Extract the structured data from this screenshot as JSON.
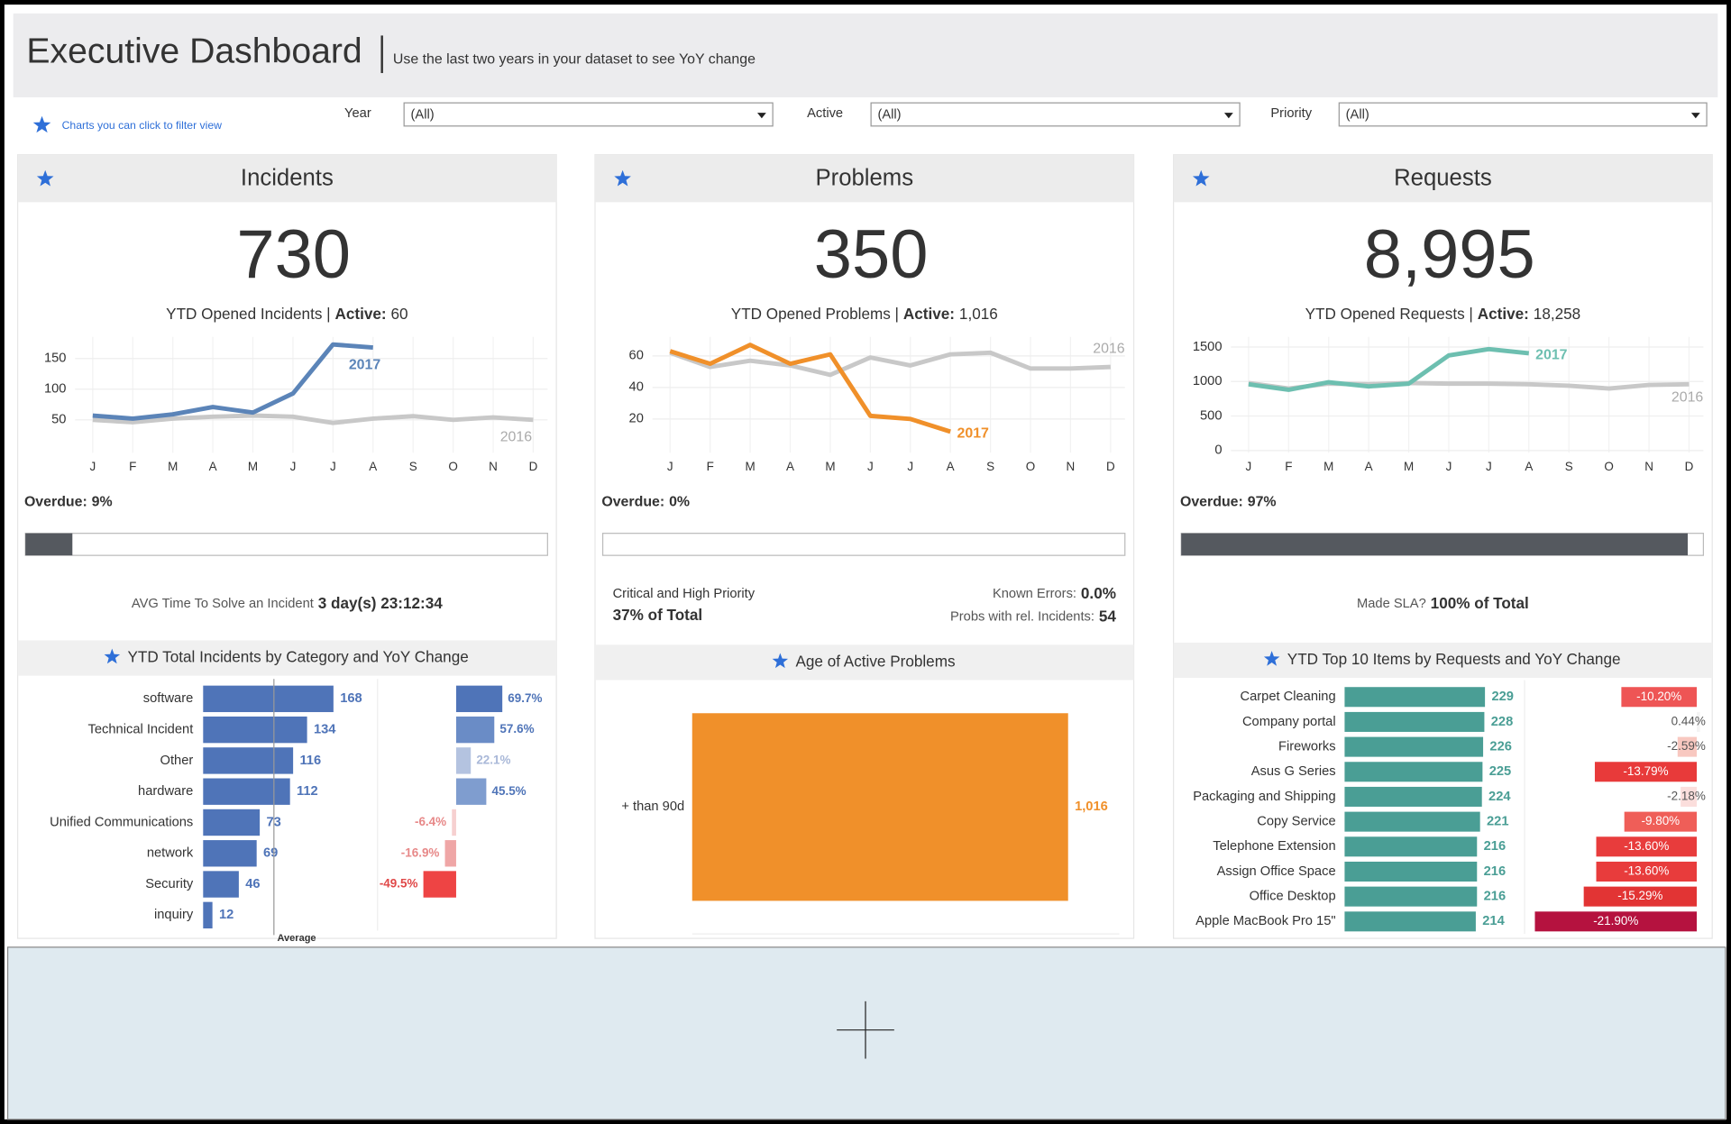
{
  "header": {
    "title": "Executive Dashboard",
    "subtitle": "Use the last two years in your dataset to see YoY change"
  },
  "legend_note": "Charts you can click to filter view",
  "filters": [
    {
      "label": "Year",
      "value": "(All)"
    },
    {
      "label": "Active",
      "value": "(All)"
    },
    {
      "label": "Priority",
      "value": "(All)"
    }
  ],
  "panels": [
    {
      "title": "Incidents",
      "kpi": "730",
      "caption": "YTD Opened Incidents |",
      "active_label": "Active:",
      "active_value": "60",
      "trend": {
        "type": "line",
        "categories": [
          "J",
          "F",
          "M",
          "A",
          "M",
          "J",
          "J",
          "A",
          "S",
          "O",
          "N",
          "D"
        ],
        "series": [
          {
            "name": "2017",
            "color": "#5b84b8",
            "values": [
              57,
              52,
              59,
              71,
              62,
              93,
              173,
              168,
              null,
              null,
              null,
              null
            ]
          },
          {
            "name": "2016",
            "color": "#c8c8c8",
            "values": [
              50,
              46,
              52,
              55,
              57,
              55,
              45,
              52,
              56,
              50,
              54,
              50
            ]
          }
        ],
        "ylim": [
          0,
          180
        ],
        "yticks": [
          50,
          100,
          150
        ]
      },
      "overdue": {
        "label": "Overdue:",
        "value": 9,
        "value_label": "9%",
        "color": "#55595f"
      },
      "stats": [
        {
          "label": "AVG Time To Solve an Incident",
          "value": "3 day(s) 23:12:34"
        }
      ],
      "breakdown": {
        "type": "bar",
        "title": "YTD Total Incidents by Category and YoY Change",
        "categories": [
          "software",
          "Technical Incident",
          "Other",
          "hardware",
          "Unified Communications",
          "network",
          "Security",
          "inquiry"
        ],
        "values": [
          168,
          134,
          116,
          112,
          73,
          69,
          46,
          12
        ],
        "color": "#4f74b8",
        "xlim": [
          0,
          222
        ],
        "average": {
          "label": "Average",
          "value": 91.25
        },
        "change": {
          "values": [
            69.7,
            57.6,
            22.1,
            45.5,
            -6.4,
            -16.9,
            -49.5,
            null
          ],
          "value_labels": [
            "69.7%",
            "57.6%",
            "22.1%",
            "45.5%",
            "-6.4%",
            "-16.9%",
            "-49.5%",
            null
          ],
          "colors": [
            "#4f74b8",
            "#6a8cc6",
            "#b4c3e0",
            "#7f9dcf",
            "#f6d0d0",
            "#efa6a6",
            "#ee4444",
            null
          ],
          "xlim": [
            -112,
            138
          ]
        }
      }
    },
    {
      "title": "Problems",
      "kpi": "350",
      "caption": "YTD Opened Problems |",
      "active_label": "Active:",
      "active_value": "1,016",
      "trend": {
        "type": "line",
        "categories": [
          "J",
          "F",
          "M",
          "A",
          "M",
          "J",
          "J",
          "A",
          "S",
          "O",
          "N",
          "D"
        ],
        "series": [
          {
            "name": "2017",
            "color": "#f0902a",
            "values": [
              63,
              55,
              67,
              55,
              61,
              22,
              20,
              12,
              null,
              null,
              null,
              null
            ]
          },
          {
            "name": "2016",
            "color": "#c8c8c8",
            "values": [
              62,
              53,
              57,
              54,
              48,
              59,
              54,
              61,
              62,
              52,
              52,
              53
            ]
          }
        ],
        "ylim": [
          0,
          70
        ],
        "yticks": [
          20,
          40,
          60
        ]
      },
      "overdue": {
        "label": "Overdue:",
        "value": 0,
        "value_label": "0%",
        "color": "#55595f"
      },
      "stats": [
        {
          "label": "Critical and High Priority",
          "value": "37% of Total"
        },
        {
          "label": "Known Errors:",
          "value": "0.0%"
        },
        {
          "label": "Probs with rel. Incidents:",
          "value": "54"
        }
      ],
      "breakdown": {
        "type": "bar",
        "title": "Age of Active Problems",
        "categories": [
          "+ than 90d"
        ],
        "values": [
          1016
        ],
        "value_labels": [
          "1,016"
        ],
        "color": "#f0902a",
        "xlim": [
          0,
          1095
        ]
      }
    },
    {
      "title": "Requests",
      "kpi": "8,995",
      "caption": "YTD Opened Requests |",
      "active_label": "Active:",
      "active_value": "18,258",
      "trend": {
        "type": "line",
        "categories": [
          "J",
          "F",
          "M",
          "A",
          "M",
          "J",
          "J",
          "A",
          "S",
          "O",
          "N",
          "D"
        ],
        "series": [
          {
            "name": "2017",
            "color": "#6dbfb0",
            "values": [
              960,
              880,
              990,
              930,
              970,
              1380,
              1470,
              1410,
              null,
              null,
              null,
              null
            ]
          },
          {
            "name": "2016",
            "color": "#c8c8c8",
            "values": [
              980,
              900,
              970,
              960,
              980,
              970,
              970,
              960,
              940,
              900,
              950,
              960
            ]
          }
        ],
        "ylim": [
          0,
          1600
        ],
        "yticks": [
          0,
          500,
          1000,
          1500
        ]
      },
      "overdue": {
        "label": "Overdue:",
        "value": 97,
        "value_label": "97%",
        "color": "#55595f"
      },
      "stats": [
        {
          "label": "Made SLA?",
          "value": "100% of Total"
        }
      ],
      "breakdown": {
        "type": "bar",
        "title": "YTD Top 10 Items by Requests and YoY Change",
        "categories": [
          "Carpet Cleaning",
          "Company portal",
          "Fireworks",
          "Asus G Series",
          "Packaging and Shipping",
          "Copy Service",
          "Telephone Extension",
          "Assign Office Space",
          "Office Desktop",
          "Apple MacBook Pro 15\""
        ],
        "values": [
          229,
          228,
          226,
          225,
          224,
          221,
          216,
          216,
          216,
          214
        ],
        "color": "#4a9e95",
        "xlim": [
          0,
          290
        ],
        "change": {
          "values": [
            -10.2,
            0.44,
            -2.59,
            -13.79,
            -2.18,
            -9.8,
            -13.6,
            -13.6,
            -15.29,
            -21.9
          ],
          "value_labels": [
            "-10.20%",
            "0.44%",
            "-2.59%",
            "-13.79%",
            "-2.18%",
            "-9.80%",
            "-13.60%",
            "-13.60%",
            "-15.29%",
            "-21.90%"
          ],
          "colors": [
            "#ee5555",
            "#f4f4f4",
            "#f8c8c0",
            "#e83a3a",
            "#fbdedc",
            "#ef5e58",
            "#e83c3c",
            "#e83c3c",
            "#e23434",
            "#b5123f"
          ],
          "xlim": [
            -22.7,
            0.9
          ]
        }
      }
    }
  ]
}
